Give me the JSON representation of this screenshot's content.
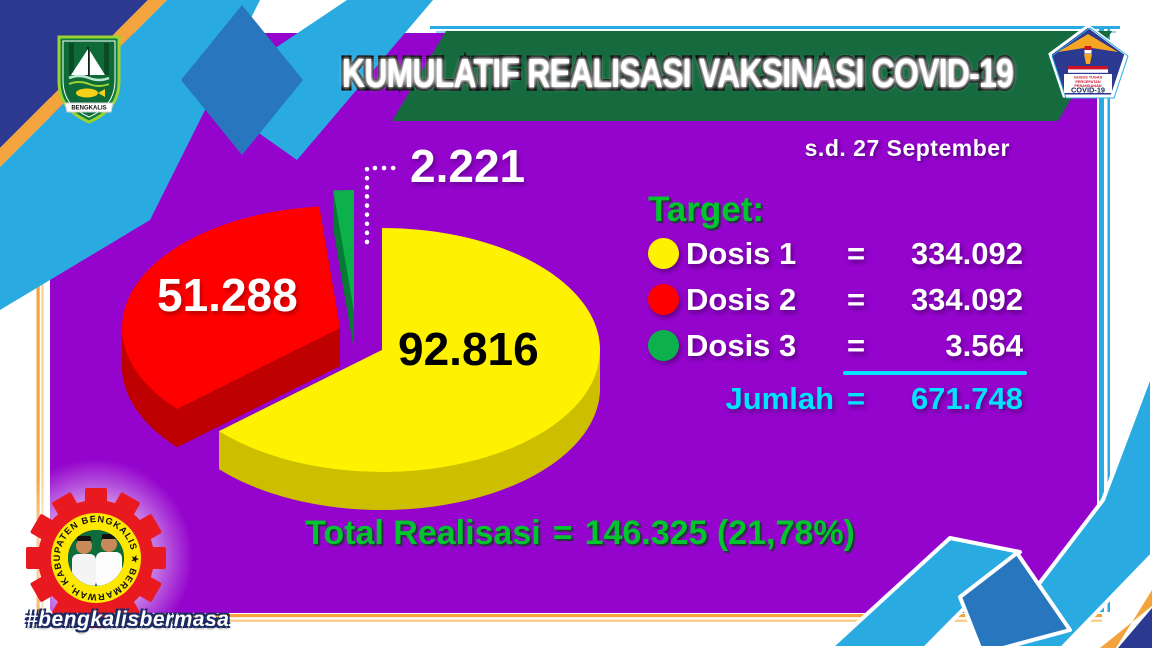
{
  "banner": {
    "title": "KUMULATIF REALISASI VAKSINASI COVID-19"
  },
  "date_label": "s.d. 27 September",
  "chart_data": {
    "type": "pie",
    "title": "KUMULATIF REALISASI VAKSINASI COVID-19",
    "as_of": "s.d. 27 September",
    "slices": [
      {
        "name": "Dosis 1",
        "value": 92816,
        "display": "92.816",
        "color": "#FFF200"
      },
      {
        "name": "Dosis 2",
        "value": 51288,
        "display": "51.288",
        "color": "#FF0000"
      },
      {
        "name": "Dosis 3",
        "value": 2221,
        "display": "2.221",
        "color": "#0DB14B"
      }
    ],
    "total_realisasi": 146325,
    "total_display": "146.325",
    "percent_of_target": "21,78%",
    "legend_position": "right",
    "style": "3d-exploded"
  },
  "target": {
    "heading": "Target:",
    "rows": [
      {
        "label": "Dosis 1",
        "eq": "=",
        "value": "334.092",
        "color": "#FFF200"
      },
      {
        "label": "Dosis 2",
        "eq": "=",
        "value": "334.092",
        "color": "#FF0000"
      },
      {
        "label": "Dosis 3",
        "eq": "=",
        "value": "3.564",
        "color": "#0DB14B"
      }
    ],
    "jumlah_label": "Jumlah",
    "jumlah_eq": "=",
    "jumlah_value": "671.748"
  },
  "total_line": {
    "label": "Total Realisasi",
    "eq": "=",
    "value": "146.325 (21,78%)"
  },
  "logos": {
    "bengkalis_shield": {
      "ribbon": "BENGKALIS"
    },
    "covid_taskforce": {
      "lines": [
        "GUGUS TUGAS",
        "PERCEPATAN",
        "PENANGANAN"
      ],
      "title": "COVID-19"
    },
    "gear_seal": {
      "ring": "KABUPATEN BENGKALIS ★ BERMARWAH, MAJU DAN SEJAHTERA ★"
    }
  },
  "hashtag": "#bengkalisbermasa",
  "colors": {
    "panel_purple": "#9404CD",
    "ribbon_blue": "#29ABE2",
    "ribbon_fold_blue": "#2776BE",
    "corner_navy": "#2B3990",
    "frame_orange": "#F4A43C",
    "banner_green": "#156A3E",
    "accent_green": "#00C52F",
    "accent_cyan": "#00E4FF"
  }
}
